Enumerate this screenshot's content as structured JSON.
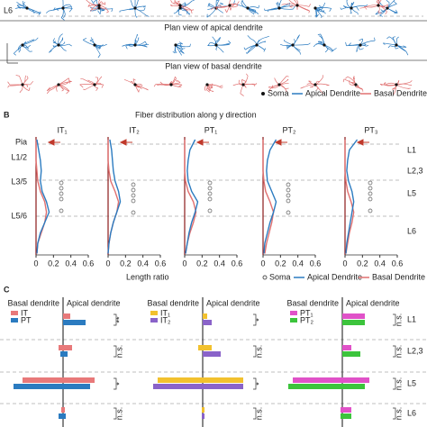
{
  "panel_a": {
    "layer_label": "L6",
    "apical_title": "Plan view of apical dendrite",
    "basal_title": "Plan view of basal dendrite",
    "legend": [
      "Soma",
      "Apical Dendrite",
      "Basal Dendrite"
    ]
  },
  "panel_b": {
    "label": "B",
    "title": "Fiber distribution along y direction",
    "xlabel": "Length ratio",
    "xlim": [
      0,
      0.6
    ],
    "xticks": [
      0,
      0.2,
      0.4,
      0.6
    ],
    "depth_labels": [
      "Pia",
      "L1/2",
      "L3/5",
      "L5/6"
    ],
    "layer_labels": [
      "L1",
      "L2,3",
      "L5",
      "L6"
    ],
    "legend": [
      "Soma",
      "Apical Dendrite",
      "Basal Dendrite"
    ],
    "apical_color": "#2b7bc0",
    "basal_color": "#e07070",
    "panels": [
      {
        "title": "IT₁",
        "apical": [
          0.01,
          0.03,
          0.05,
          0.06,
          0.05,
          0.07,
          0.12,
          0.15,
          0.1,
          0.05,
          0.02,
          0.01
        ],
        "basal": [
          0,
          0,
          0,
          0.01,
          0.02,
          0.05,
          0.1,
          0.12,
          0.1,
          0.06,
          0.02,
          0.01
        ]
      },
      {
        "title": "IT₂",
        "apical": [
          0.02,
          0.04,
          0.05,
          0.06,
          0.08,
          0.12,
          0.14,
          0.1,
          0.06,
          0.03,
          0.01,
          0
        ],
        "basal": [
          0,
          0,
          0,
          0.01,
          0.03,
          0.08,
          0.12,
          0.1,
          0.06,
          0.03,
          0.01,
          0
        ]
      },
      {
        "title": "PT₁",
        "apical": [
          0.12,
          0.06,
          0.04,
          0.03,
          0.04,
          0.08,
          0.15,
          0.12,
          0.08,
          0.05,
          0.03,
          0.01
        ],
        "basal": [
          0,
          0,
          0,
          0,
          0.01,
          0.04,
          0.1,
          0.13,
          0.1,
          0.06,
          0.03,
          0.01
        ]
      },
      {
        "title": "PT₂",
        "apical": [
          0.15,
          0.08,
          0.05,
          0.04,
          0.05,
          0.1,
          0.15,
          0.12,
          0.08,
          0.05,
          0.02,
          0.01
        ],
        "basal": [
          0,
          0,
          0,
          0,
          0.01,
          0.03,
          0.08,
          0.12,
          0.1,
          0.07,
          0.04,
          0.02
        ]
      },
      {
        "title": "PT₃",
        "apical": [
          0.14,
          0.05,
          0.03,
          0.02,
          0.04,
          0.08,
          0.1,
          0.08,
          0.06,
          0.04,
          0.02,
          0.01
        ],
        "basal": [
          0,
          0,
          0,
          0,
          0.01,
          0.03,
          0.07,
          0.1,
          0.08,
          0.05,
          0.03,
          0.01
        ]
      }
    ]
  },
  "panel_c": {
    "label": "C",
    "headers": [
      "Basal dendrite",
      "Apical dendrite"
    ],
    "layers": [
      "L1",
      "L2,3",
      "L5",
      "L6"
    ],
    "panels": [
      {
        "series": [
          {
            "name": "IT",
            "color": "#e8797a",
            "apical": [
              0.08,
              0.1,
              0.35,
              0.02
            ],
            "basal": [
              0,
              0.05,
              0.45,
              0.02
            ]
          },
          {
            "name": "PT",
            "color": "#2b7bc0",
            "apical": [
              0.25,
              0.05,
              0.3,
              0.03
            ],
            "basal": [
              0,
              0.03,
              0.55,
              0.05
            ]
          }
        ],
        "significance": [
          "**",
          "n.s.",
          "*",
          "n.s."
        ]
      },
      {
        "series": [
          {
            "name": "IT₁",
            "color": "#f2c12e",
            "apical": [
              0.05,
              0.1,
              0.45,
              0.02
            ],
            "basal": [
              0,
              0.05,
              0.5,
              0.01
            ]
          },
          {
            "name": "IT₂",
            "color": "#8a63c9",
            "apical": [
              0.1,
              0.2,
              0.45,
              0.02
            ],
            "basal": [
              0,
              0,
              0.55,
              0.01
            ]
          }
        ],
        "significance": [
          "*",
          "n.s.",
          "*",
          "n.s."
        ]
      },
      {
        "series": [
          {
            "name": "PT₁",
            "color": "#e052c8",
            "apical": [
              0.25,
              0.1,
              0.3,
              0.1
            ],
            "basal": [
              0,
              0,
              0.55,
              0.02
            ]
          },
          {
            "name": "PT₂",
            "color": "#3cc43c",
            "apical": [
              0.25,
              0.2,
              0.25,
              0.1
            ],
            "basal": [
              0,
              0,
              0.6,
              0.02
            ]
          }
        ],
        "significance": [
          "n.s.",
          "n.s.",
          "n.s.",
          "n.s."
        ]
      }
    ]
  }
}
